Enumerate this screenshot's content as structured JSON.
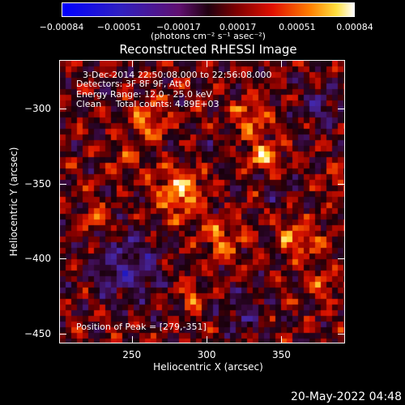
{
  "chart_data": {
    "type": "heatmap",
    "title": "Reconstructed RHESSI Image",
    "xlabel": "Heliocentric X (arcsec)",
    "ylabel": "Heliocentric Y (arcsec)",
    "xlim": [
      202,
      392
    ],
    "ylim": [
      -456,
      -268
    ],
    "x_ticks": [
      250,
      300,
      350
    ],
    "y_ticks": [
      -300,
      -350,
      -400,
      -450
    ],
    "x_tick_labels": [
      "250",
      "300",
      "350"
    ],
    "y_tick_labels": [
      "−300",
      "−350",
      "−400",
      "−450"
    ],
    "colorbar": {
      "range": [
        -0.00084,
        0.00084
      ],
      "tick_values": [
        -0.00084,
        -0.00051,
        -0.00017,
        0.00017,
        0.00051,
        0.00084
      ],
      "tick_labels": [
        "−0.00084",
        "−0.00051",
        "−0.00017",
        "0.00017",
        "0.00051",
        "0.00084"
      ],
      "units": "(photons cm⁻² s⁻¹ asec⁻²)",
      "colormap": "blue-purple-red-yellow-white"
    },
    "peak_position": [
      279,
      -351
    ],
    "annotations": [
      "3-Dec-2014 22:50:08.000 to 22:56:08.000",
      "Detectors: 3F 8F 9F, Att 0",
      "Energy Range: 12.0 - 25.0 keV",
      "Clean     Total counts: 4.89E+03",
      "Position of Peak = [279,-351]"
    ],
    "grid": false
  },
  "timestamp": "20-May-2022 04:48"
}
